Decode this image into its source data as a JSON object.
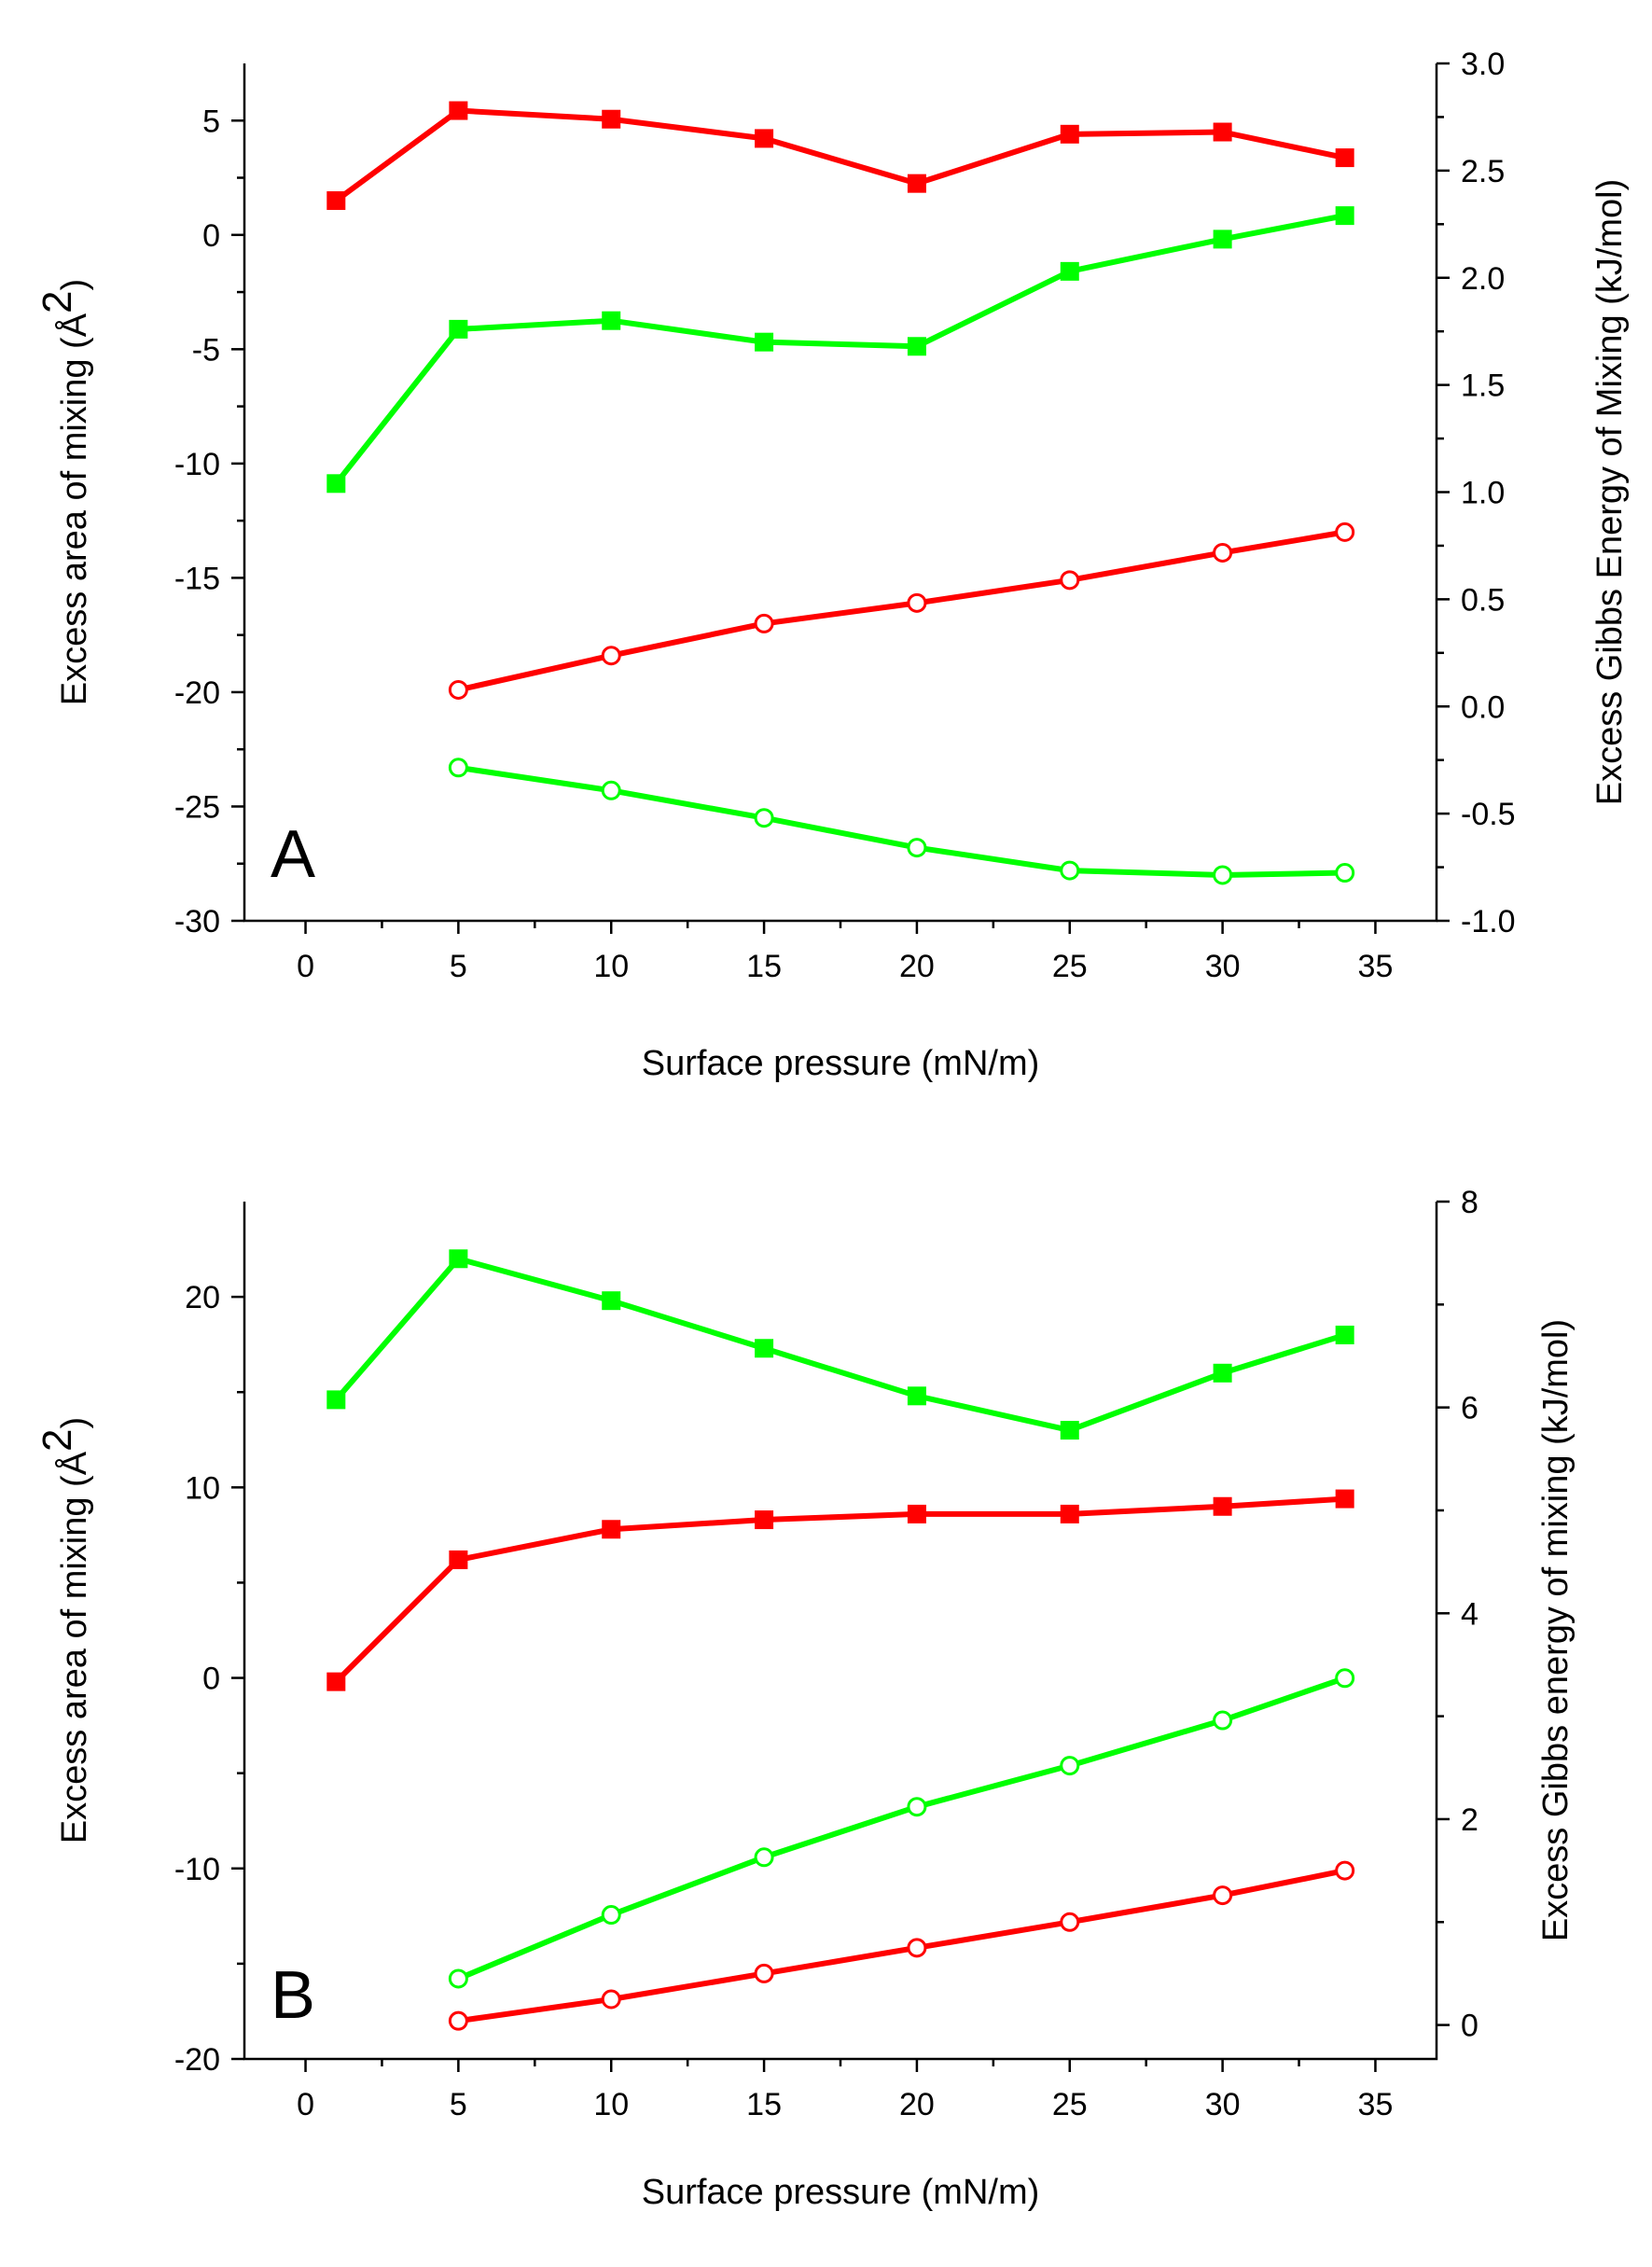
{
  "chart_data": [
    {
      "type": "line",
      "panel_label": "A",
      "xlabel": "Surface pressure (mN/m)",
      "ylabel_left": "Excess area of mixing (Å",
      "ylabel_left_sup": "2",
      "ylabel_left_close": ")",
      "ylabel_right": "Excess Gibbs Energy of Mixing (kJ/mol)",
      "xlim": [
        -2,
        37
      ],
      "ylim_left": [
        -30,
        7.5
      ],
      "ylim_right": [
        -1.0,
        3.0
      ],
      "x_ticks": [
        0,
        5,
        10,
        15,
        20,
        25,
        30,
        35
      ],
      "x_tick_labels": [
        "0",
        "5",
        "10",
        "15",
        "20",
        "25",
        "30",
        "35"
      ],
      "y_left_ticks": [
        -30,
        -25,
        -20,
        -15,
        -10,
        -5,
        0,
        5
      ],
      "y_left_tick_labels": [
        "-30",
        "-25",
        "-20",
        "-15",
        "-10",
        "-5",
        "0",
        "5"
      ],
      "y_right_ticks": [
        -1.0,
        -0.5,
        0.0,
        0.5,
        1.0,
        1.5,
        2.0,
        2.5,
        3.0
      ],
      "y_right_tick_labels": [
        "-1.0",
        "-0.5",
        "0.0",
        "0.5",
        "1.0",
        "1.5",
        "2.0",
        "2.5",
        "3.0"
      ],
      "series": [
        {
          "name": "red-filled-squares",
          "axis": "right",
          "color": "#ff0000",
          "marker": "square-filled",
          "x": [
            1,
            5,
            10,
            15,
            20,
            25,
            30,
            34
          ],
          "values": [
            2.36,
            2.78,
            2.74,
            2.65,
            2.44,
            2.67,
            2.68,
            2.56
          ]
        },
        {
          "name": "green-filled-squares",
          "axis": "right",
          "color": "#00ff00",
          "marker": "square-filled",
          "x": [
            1,
            5,
            10,
            15,
            20,
            25,
            30,
            34
          ],
          "values": [
            1.04,
            1.76,
            1.8,
            1.7,
            1.68,
            2.03,
            2.18,
            2.29
          ]
        },
        {
          "name": "red-open-circles",
          "axis": "left",
          "color": "#ff0000",
          "marker": "circle-open",
          "x": [
            5,
            10,
            15,
            20,
            25,
            30,
            34
          ],
          "values": [
            -19.9,
            -18.4,
            -17.0,
            -16.1,
            -15.1,
            -13.9,
            -13.0
          ]
        },
        {
          "name": "green-open-circles",
          "axis": "left",
          "color": "#00ff00",
          "marker": "circle-open",
          "x": [
            5,
            10,
            15,
            20,
            25,
            30,
            34
          ],
          "values": [
            -23.3,
            -24.3,
            -25.5,
            -26.8,
            -27.8,
            -28.0,
            -27.9
          ]
        }
      ]
    },
    {
      "type": "line",
      "panel_label": "B",
      "xlabel": "Surface pressure (mN/m)",
      "ylabel_left": "Excess area of mixing (Å",
      "ylabel_left_sup": "2",
      "ylabel_left_close": ")",
      "ylabel_right": "Excess Gibbs energy of mixing (kJ/mol)",
      "xlim": [
        -2,
        37
      ],
      "ylim_left": [
        -20,
        25
      ],
      "ylim_right": [
        -0.33,
        8
      ],
      "x_ticks": [
        0,
        5,
        10,
        15,
        20,
        25,
        30,
        35
      ],
      "x_tick_labels": [
        "0",
        "5",
        "10",
        "15",
        "20",
        "25",
        "30",
        "35"
      ],
      "y_left_ticks": [
        -20,
        -10,
        0,
        10,
        20
      ],
      "y_left_tick_labels": [
        "-20",
        "-10",
        "0",
        "10",
        "20"
      ],
      "y_right_ticks": [
        0,
        2,
        4,
        6,
        8
      ],
      "y_right_tick_labels": [
        "0",
        "2",
        "4",
        "6",
        "8"
      ],
      "series": [
        {
          "name": "green-filled-squares",
          "axis": "left",
          "color": "#00ff00",
          "marker": "square-filled",
          "x": [
            1,
            5,
            10,
            15,
            20,
            25,
            30,
            34
          ],
          "values": [
            14.6,
            22.0,
            19.8,
            17.3,
            14.8,
            13.0,
            16.0,
            18.0
          ]
        },
        {
          "name": "red-filled-squares",
          "axis": "left",
          "color": "#ff0000",
          "marker": "square-filled",
          "x": [
            1,
            5,
            10,
            15,
            20,
            25,
            30,
            34
          ],
          "values": [
            -0.2,
            6.2,
            7.8,
            8.3,
            8.6,
            8.6,
            9.0,
            9.4
          ]
        },
        {
          "name": "green-open-circles",
          "axis": "right",
          "color": "#00ff00",
          "marker": "circle-open",
          "x": [
            5,
            10,
            15,
            20,
            25,
            30,
            34
          ],
          "values": [
            0.45,
            1.07,
            1.63,
            2.12,
            2.52,
            2.96,
            3.37
          ]
        },
        {
          "name": "red-open-circles",
          "axis": "right",
          "color": "#ff0000",
          "marker": "circle-open",
          "x": [
            5,
            10,
            15,
            20,
            25,
            30,
            34
          ],
          "values": [
            0.04,
            0.25,
            0.5,
            0.75,
            1.0,
            1.26,
            1.5
          ]
        }
      ]
    }
  ]
}
